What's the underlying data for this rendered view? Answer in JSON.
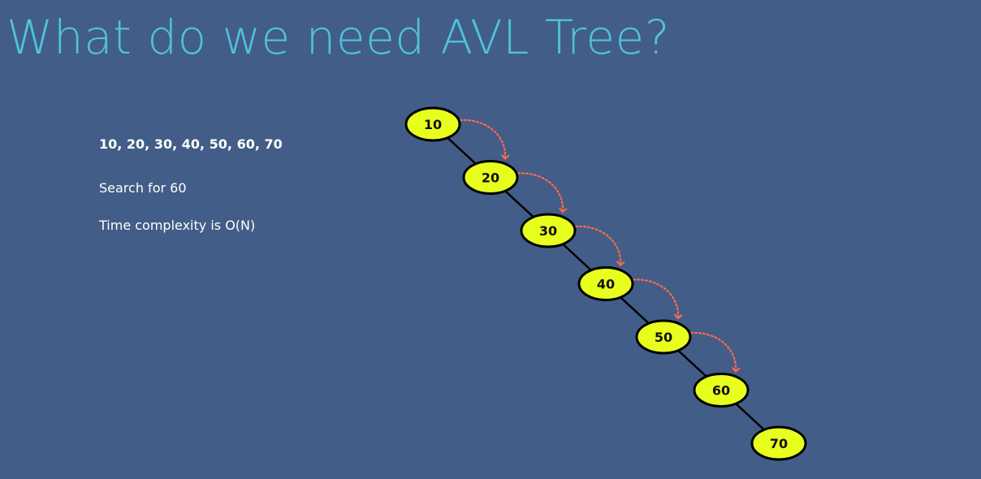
{
  "slide": {
    "title": "What do we need AVL Tree?",
    "sequence": "10, 20, 30, 40, 50, 60, 70",
    "search_text": "Search for 60",
    "complexity_text": "Time complexity is O(N)"
  },
  "diagram": {
    "nodes": [
      "10",
      "20",
      "30",
      "40",
      "50",
      "60",
      "70"
    ],
    "edges": [
      [
        "10",
        "20"
      ],
      [
        "20",
        "30"
      ],
      [
        "30",
        "40"
      ],
      [
        "40",
        "50"
      ],
      [
        "50",
        "60"
      ],
      [
        "60",
        "70"
      ]
    ],
    "search_path": [
      [
        "10",
        "20"
      ],
      [
        "20",
        "30"
      ],
      [
        "30",
        "40"
      ],
      [
        "40",
        "50"
      ],
      [
        "50",
        "60"
      ]
    ],
    "colors": {
      "background": "#425d87",
      "title": "#4fc3d6",
      "node_fill": "#e8ff1e",
      "node_stroke": "#000000",
      "edge": "#000000",
      "search_arrow": "#ff6a4a",
      "text": "#ffffff"
    }
  }
}
